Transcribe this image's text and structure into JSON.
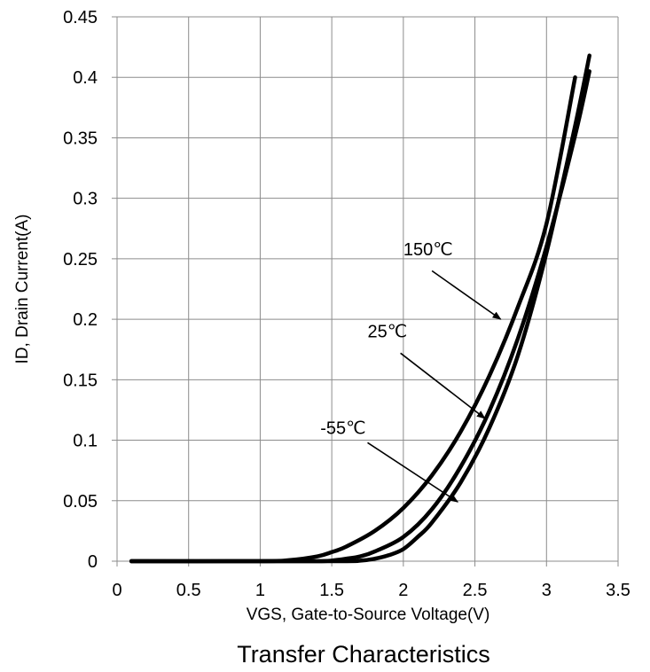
{
  "chart_data": {
    "type": "line",
    "title": "Transfer Characteristics",
    "xlabel": "VGS, Gate-to-Source Voltage(V)",
    "ylabel": "ID, Drain Current(A)",
    "xlim": [
      0,
      3.5
    ],
    "ylim": [
      0,
      0.45
    ],
    "xticks": [
      0,
      0.5,
      1,
      1.5,
      2,
      2.5,
      3,
      3.5
    ],
    "yticks": [
      0,
      0.05,
      0.1,
      0.15,
      0.2,
      0.25,
      0.3,
      0.35,
      0.4,
      0.45
    ],
    "xtick_labels": [
      "0",
      "0.5",
      "1",
      "1.5",
      "2",
      "2.5",
      "3",
      "3.5"
    ],
    "ytick_labels": [
      "0",
      "0.05",
      "0.1",
      "0.15",
      "0.2",
      "0.25",
      "0.3",
      "0.35",
      "0.4",
      "0.45"
    ],
    "grid": true,
    "line_color": "#000000",
    "series": [
      {
        "name": "150℃",
        "x": [
          0.1,
          1.0,
          1.2,
          1.4,
          1.5,
          1.6,
          1.8,
          2.0,
          2.2,
          2.4,
          2.6,
          2.8,
          3.0,
          3.2
        ],
        "y": [
          0.0,
          0.0,
          0.0008,
          0.004,
          0.0075,
          0.012,
          0.025,
          0.044,
          0.071,
          0.107,
          0.153,
          0.21,
          0.279,
          0.4
        ]
      },
      {
        "name": "25℃",
        "x": [
          0.1,
          1.0,
          1.4,
          1.5,
          1.6,
          1.7,
          1.8,
          2.0,
          2.2,
          2.4,
          2.6,
          2.8,
          3.0,
          3.2,
          3.3
        ],
        "y": [
          0.0,
          0.0,
          0.0,
          0.0005,
          0.002,
          0.004,
          0.008,
          0.02,
          0.043,
          0.078,
          0.124,
          0.184,
          0.26,
          0.352,
          0.405
        ]
      },
      {
        "name": "-55℃",
        "x": [
          0.1,
          1.5,
          1.7,
          1.8,
          1.9,
          2.0,
          2.1,
          2.2,
          2.4,
          2.6,
          2.8,
          3.0,
          3.2,
          3.3
        ],
        "y": [
          0.0,
          0.0,
          0.0005,
          0.002,
          0.005,
          0.01,
          0.02,
          0.032,
          0.065,
          0.11,
          0.17,
          0.255,
          0.36,
          0.418
        ]
      }
    ],
    "annotations": [
      {
        "text": "150℃",
        "label_at": [
          2.0,
          0.253
        ],
        "tail": [
          2.2,
          0.24
        ],
        "arrow_to": [
          2.68,
          0.2
        ]
      },
      {
        "text": "25℃",
        "label_at": [
          1.75,
          0.185
        ],
        "tail": [
          1.98,
          0.172
        ],
        "arrow_to": [
          2.57,
          0.118
        ]
      },
      {
        "text": "-55℃",
        "label_at": [
          1.42,
          0.105
        ],
        "tail": [
          1.75,
          0.098
        ],
        "arrow_to": [
          2.38,
          0.049
        ]
      }
    ]
  }
}
